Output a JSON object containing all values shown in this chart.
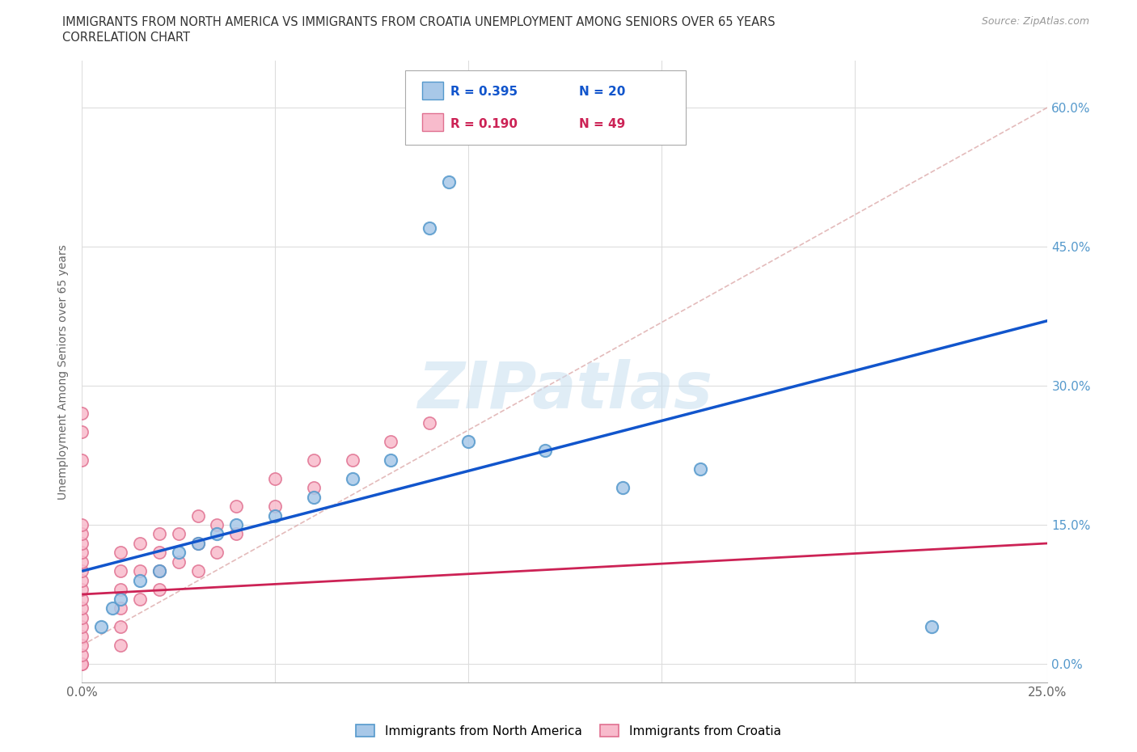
{
  "title_line1": "IMMIGRANTS FROM NORTH AMERICA VS IMMIGRANTS FROM CROATIA UNEMPLOYMENT AMONG SENIORS OVER 65 YEARS",
  "title_line2": "CORRELATION CHART",
  "source": "Source: ZipAtlas.com",
  "ylabel": "Unemployment Among Seniors over 65 years",
  "xmin": 0.0,
  "xmax": 0.25,
  "ymin": -0.02,
  "ymax": 0.65,
  "xtick_pos": [
    0.0,
    0.05,
    0.1,
    0.15,
    0.2,
    0.25
  ],
  "xtick_labels": [
    "0.0%",
    "",
    "",
    "",
    "",
    "25.0%"
  ],
  "ytick_positions": [
    0.0,
    0.15,
    0.3,
    0.45,
    0.6
  ],
  "ytick_labels": [
    "0.0%",
    "15.0%",
    "30.0%",
    "45.0%",
    "60.0%"
  ],
  "north_america_color": "#a8c8e8",
  "north_america_edge_color": "#5599cc",
  "croatia_color": "#f8bbcc",
  "croatia_edge_color": "#e07090",
  "north_america_line_color": "#1155cc",
  "croatia_line_color": "#cc2255",
  "trend_line_color": "#ccaaaa",
  "watermark": "ZIPatlas",
  "legend_R_na": "R = 0.395",
  "legend_N_na": "N = 20",
  "legend_R_cr": "R = 0.190",
  "legend_N_cr": "N = 49",
  "na_x": [
    0.005,
    0.008,
    0.01,
    0.015,
    0.02,
    0.025,
    0.03,
    0.035,
    0.04,
    0.05,
    0.06,
    0.07,
    0.08,
    0.09,
    0.095,
    0.1,
    0.12,
    0.14,
    0.16,
    0.22
  ],
  "na_y": [
    0.04,
    0.06,
    0.07,
    0.09,
    0.1,
    0.12,
    0.13,
    0.14,
    0.15,
    0.16,
    0.18,
    0.2,
    0.22,
    0.47,
    0.52,
    0.24,
    0.23,
    0.19,
    0.21,
    0.04
  ],
  "cr_x": [
    0.0,
    0.0,
    0.0,
    0.0,
    0.0,
    0.0,
    0.0,
    0.0,
    0.0,
    0.0,
    0.0,
    0.0,
    0.0,
    0.0,
    0.0,
    0.0,
    0.0,
    0.0,
    0.0,
    0.0,
    0.01,
    0.01,
    0.01,
    0.01,
    0.01,
    0.01,
    0.015,
    0.015,
    0.015,
    0.02,
    0.02,
    0.02,
    0.02,
    0.025,
    0.025,
    0.03,
    0.03,
    0.03,
    0.035,
    0.035,
    0.04,
    0.04,
    0.05,
    0.05,
    0.06,
    0.06,
    0.07,
    0.08,
    0.09
  ],
  "cr_y": [
    0.0,
    0.0,
    0.01,
    0.02,
    0.03,
    0.04,
    0.05,
    0.06,
    0.07,
    0.08,
    0.09,
    0.1,
    0.11,
    0.12,
    0.13,
    0.14,
    0.15,
    0.22,
    0.25,
    0.27,
    0.02,
    0.04,
    0.06,
    0.08,
    0.1,
    0.12,
    0.07,
    0.1,
    0.13,
    0.08,
    0.1,
    0.12,
    0.14,
    0.11,
    0.14,
    0.1,
    0.13,
    0.16,
    0.12,
    0.15,
    0.14,
    0.17,
    0.17,
    0.2,
    0.19,
    0.22,
    0.22,
    0.24,
    0.26
  ],
  "background_color": "#ffffff",
  "grid_color": "#dddddd"
}
